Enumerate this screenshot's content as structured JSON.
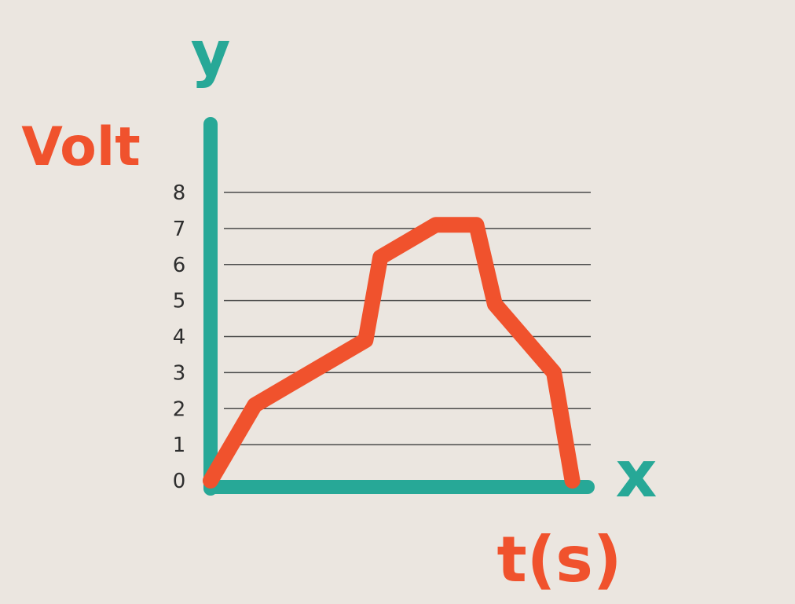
{
  "colors": {
    "paper": "#ebe6e0",
    "axis": "#27a897",
    "curve": "#f0522d",
    "grid": "#4a4a4a",
    "tick_text": "#2e2e2e"
  },
  "labels": {
    "y_axis_letter": "y",
    "x_axis_letter": "x",
    "y_unit": "Volt",
    "x_unit": "t(s)"
  },
  "chart_data": {
    "type": "line",
    "title": "",
    "xlabel": "t(s)",
    "ylabel": "Volt",
    "y_ticks": [
      "0",
      "1",
      "2",
      "3",
      "4",
      "5",
      "6",
      "7",
      "8"
    ],
    "ylim": [
      0,
      8
    ],
    "grid": true,
    "x_tick_labels": "none",
    "series": [
      {
        "x": [
          0,
          1.2,
          4.2,
          4.6,
          6.1,
          7.2,
          7.7,
          9.3,
          9.8
        ],
        "y": [
          0,
          2.1,
          3.9,
          6.2,
          7.1,
          7.1,
          4.9,
          3.0,
          0
        ]
      }
    ]
  }
}
